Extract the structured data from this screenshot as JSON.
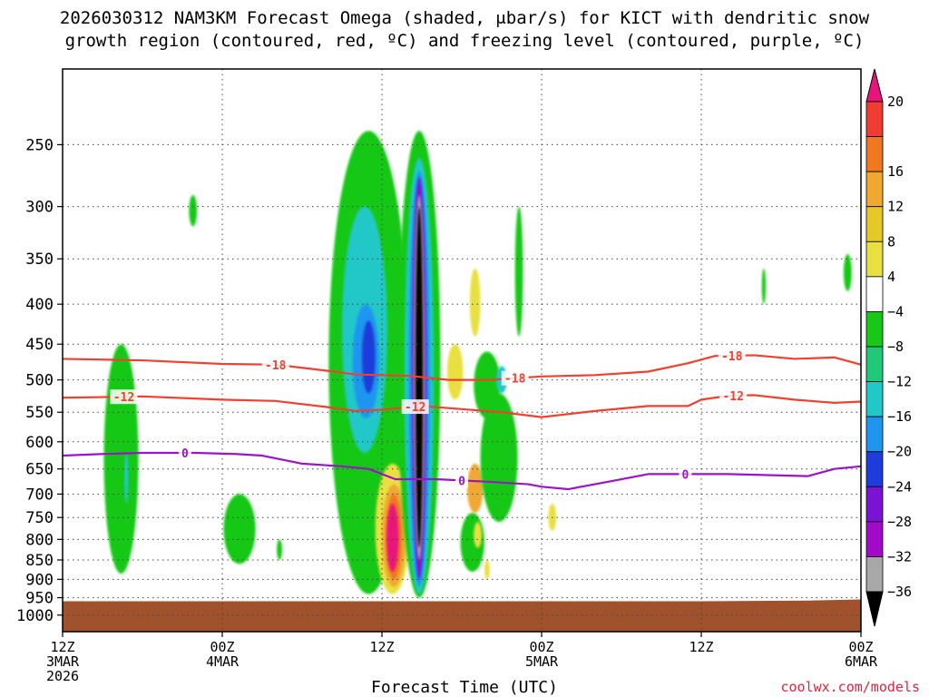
{
  "header": {
    "title_line1": "2026030312 NAM3KM Forecast Omega (shaded, μbar/s) for KICT with dendritic snow",
    "title_line2": "growth region (contoured, red, ºC) and freezing level (contoured, purple, ºC)"
  },
  "credit": "coolwx.com/models",
  "chart_data": {
    "type": "heatmap",
    "title": "2026030312 NAM3KM Forecast Omega (shaded, μbar/s) for KICT with dendritic snow growth region (contoured, red, ºC) and freezing level (contoured, purple, ºC)",
    "xlabel": "Forecast Time (UTC)",
    "ylabel": "",
    "x_range_hours": [
      0,
      60
    ],
    "x_ticks": [
      {
        "hour": 0,
        "lines": [
          "12Z",
          "3MAR",
          "2026"
        ]
      },
      {
        "hour": 12,
        "lines": [
          "00Z",
          "4MAR"
        ]
      },
      {
        "hour": 24,
        "lines": [
          "12Z"
        ]
      },
      {
        "hour": 36,
        "lines": [
          "00Z",
          "5MAR"
        ]
      },
      {
        "hour": 48,
        "lines": [
          "12Z"
        ]
      },
      {
        "hour": 60,
        "lines": [
          "00Z",
          "6MAR"
        ]
      }
    ],
    "y_range_hpa": [
      1050,
      200
    ],
    "y_scale": "log",
    "y_ticks": [
      250,
      300,
      350,
      400,
      450,
      500,
      550,
      600,
      650,
      700,
      750,
      800,
      850,
      900,
      950,
      1000
    ],
    "grid": true,
    "colorbar": {
      "labels": [
        "20",
        "16",
        "12",
        "8",
        "4",
        "−4",
        "−8",
        "−12",
        "−16",
        "−20",
        "−24",
        "−28",
        "−32",
        "−36"
      ],
      "colors": [
        "#e8147a",
        "#f03c32",
        "#f07820",
        "#f0a830",
        "#e6c828",
        "#e8e040",
        "#ffffff",
        "#18c818",
        "#20c878",
        "#20c8c8",
        "#1e96f0",
        "#1e3cdc",
        "#7a14d2",
        "#a00ac8",
        "#a8a8a8",
        "#000000"
      ]
    },
    "omega_blobs": [
      {
        "t": 4.4,
        "p": 700,
        "dt": 1.3,
        "topP": 450,
        "botP": 885,
        "value": -6
      },
      {
        "t": 4.8,
        "p": 640,
        "dt": 0.15,
        "topP": 620,
        "botP": 720,
        "value": -12
      },
      {
        "t": 9.8,
        "p": 300,
        "dt": 0.3,
        "topP": 290,
        "botP": 318,
        "value": -6
      },
      {
        "t": 13.3,
        "p": 780,
        "dt": 1.2,
        "topP": 700,
        "botP": 860,
        "value": -6
      },
      {
        "t": 16.3,
        "p": 820,
        "dt": 0.2,
        "topP": 800,
        "botP": 850,
        "value": -6
      },
      {
        "t": 23.0,
        "p": 500,
        "dt": 3.0,
        "topP": 240,
        "botP": 940,
        "value": -6
      },
      {
        "t": 22.7,
        "p": 450,
        "dt": 1.7,
        "topP": 300,
        "botP": 620,
        "value": -12
      },
      {
        "t": 22.8,
        "p": 460,
        "dt": 1.0,
        "topP": 400,
        "botP": 560,
        "value": -16
      },
      {
        "t": 23.0,
        "p": 470,
        "dt": 0.5,
        "topP": 420,
        "botP": 520,
        "value": -20
      },
      {
        "t": 24.8,
        "p": 730,
        "dt": 1.3,
        "topP": 640,
        "botP": 940,
        "value": 4
      },
      {
        "t": 24.9,
        "p": 750,
        "dt": 0.9,
        "topP": 680,
        "botP": 920,
        "value": 8
      },
      {
        "t": 24.9,
        "p": 760,
        "dt": 0.6,
        "topP": 700,
        "botP": 900,
        "value": 12
      },
      {
        "t": 24.8,
        "p": 760,
        "dt": 0.45,
        "topP": 720,
        "botP": 880,
        "value": 20
      },
      {
        "t": 26.8,
        "p": 550,
        "dt": 1.6,
        "topP": 240,
        "botP": 950,
        "value": -6
      },
      {
        "t": 26.8,
        "p": 550,
        "dt": 1.1,
        "topP": 260,
        "botP": 940,
        "value": -12
      },
      {
        "t": 26.8,
        "p": 550,
        "dt": 0.8,
        "topP": 270,
        "botP": 920,
        "value": -16
      },
      {
        "t": 26.8,
        "p": 550,
        "dt": 0.55,
        "topP": 275,
        "botP": 900,
        "value": -24
      },
      {
        "t": 26.8,
        "p": 550,
        "dt": 0.4,
        "topP": 290,
        "botP": 850,
        "value": -32
      },
      {
        "t": 26.8,
        "p": 550,
        "dt": 0.28,
        "topP": 300,
        "botP": 820,
        "value": -36
      },
      {
        "t": 29.5,
        "p": 490,
        "dt": 0.6,
        "topP": 450,
        "botP": 530,
        "value": 4
      },
      {
        "t": 30.8,
        "p": 760,
        "dt": 0.9,
        "topP": 740,
        "botP": 880,
        "value": -6
      },
      {
        "t": 31.0,
        "p": 395,
        "dt": 0.4,
        "topP": 360,
        "botP": 440,
        "value": 4
      },
      {
        "t": 31.0,
        "p": 680,
        "dt": 0.6,
        "topP": 640,
        "botP": 740,
        "value": 8
      },
      {
        "t": 31.2,
        "p": 780,
        "dt": 0.3,
        "topP": 760,
        "botP": 820,
        "value": 4
      },
      {
        "t": 31.9,
        "p": 870,
        "dt": 0.2,
        "topP": 850,
        "botP": 900,
        "value": 4
      },
      {
        "t": 31.9,
        "p": 490,
        "dt": 1.0,
        "topP": 460,
        "botP": 560,
        "value": -6
      },
      {
        "t": 32.8,
        "p": 620,
        "dt": 1.4,
        "topP": 520,
        "botP": 760,
        "value": -6
      },
      {
        "t": 33.0,
        "p": 500,
        "dt": 0.4,
        "topP": 480,
        "botP": 520,
        "value": -12
      },
      {
        "t": 34.3,
        "p": 360,
        "dt": 0.3,
        "topP": 300,
        "botP": 440,
        "value": -6
      },
      {
        "t": 36.8,
        "p": 745,
        "dt": 0.3,
        "topP": 720,
        "botP": 780,
        "value": 4
      },
      {
        "t": 52.7,
        "p": 385,
        "dt": 0.15,
        "topP": 360,
        "botP": 400,
        "value": -6
      },
      {
        "t": 59.0,
        "p": 365,
        "dt": 0.3,
        "topP": 345,
        "botP": 385,
        "value": -6
      }
    ],
    "terrain": {
      "color": "#a0522d",
      "pressure_by_hour": [
        [
          0,
          960
        ],
        [
          12,
          960
        ],
        [
          48,
          960
        ],
        [
          56,
          958
        ],
        [
          60,
          955
        ]
      ]
    },
    "contours": [
      {
        "name": "-18",
        "color": "#f04030",
        "labels": [
          {
            "hour": 16,
            "text": "-18"
          },
          {
            "hour": 34,
            "text": "-18"
          },
          {
            "hour": 50.3,
            "text": "-18"
          }
        ],
        "points": [
          [
            0,
            470
          ],
          [
            6,
            472
          ],
          [
            12,
            477
          ],
          [
            16,
            478
          ],
          [
            20,
            487
          ],
          [
            22,
            492
          ],
          [
            26,
            494
          ],
          [
            29,
            500
          ],
          [
            32,
            500
          ],
          [
            36,
            495
          ],
          [
            40,
            493
          ],
          [
            44,
            488
          ],
          [
            47,
            476
          ],
          [
            49,
            466
          ],
          [
            52,
            465
          ],
          [
            55,
            470
          ],
          [
            58,
            468
          ],
          [
            60,
            478
          ]
        ]
      },
      {
        "name": "-12",
        "color": "#f04030",
        "labels": [
          {
            "hour": 4.6,
            "text": "-12"
          },
          {
            "hour": 26.5,
            "text": "-12"
          },
          {
            "hour": 50.4,
            "text": "-12"
          }
        ],
        "points": [
          [
            0,
            527
          ],
          [
            6,
            525
          ],
          [
            12,
            530
          ],
          [
            16,
            532
          ],
          [
            20,
            542
          ],
          [
            22,
            548
          ],
          [
            24,
            546
          ],
          [
            27,
            540
          ],
          [
            30,
            545
          ],
          [
            33,
            550
          ],
          [
            36,
            558
          ],
          [
            40,
            548
          ],
          [
            44,
            540
          ],
          [
            47,
            540
          ],
          [
            48,
            530
          ],
          [
            50,
            524
          ],
          [
            52,
            523
          ],
          [
            55,
            530
          ],
          [
            58,
            535
          ],
          [
            60,
            533
          ]
        ]
      },
      {
        "name": "0",
        "color": "#9b14c8",
        "labels": [
          {
            "hour": 9.2,
            "text": "0"
          },
          {
            "hour": 30,
            "text": "0"
          },
          {
            "hour": 46.8,
            "text": "0"
          }
        ],
        "points": [
          [
            0,
            625
          ],
          [
            3,
            622
          ],
          [
            6,
            620
          ],
          [
            10,
            620
          ],
          [
            13,
            622
          ],
          [
            15,
            625
          ],
          [
            18,
            640
          ],
          [
            21,
            645
          ],
          [
            23,
            650
          ],
          [
            25,
            670
          ],
          [
            28,
            670
          ],
          [
            32,
            675
          ],
          [
            35,
            680
          ],
          [
            36,
            685
          ],
          [
            38,
            690
          ],
          [
            40,
            680
          ],
          [
            42,
            670
          ],
          [
            44,
            660
          ],
          [
            47,
            660
          ],
          [
            50,
            660
          ],
          [
            53,
            662
          ],
          [
            56,
            664
          ],
          [
            58,
            650
          ],
          [
            60,
            645
          ]
        ]
      }
    ]
  }
}
